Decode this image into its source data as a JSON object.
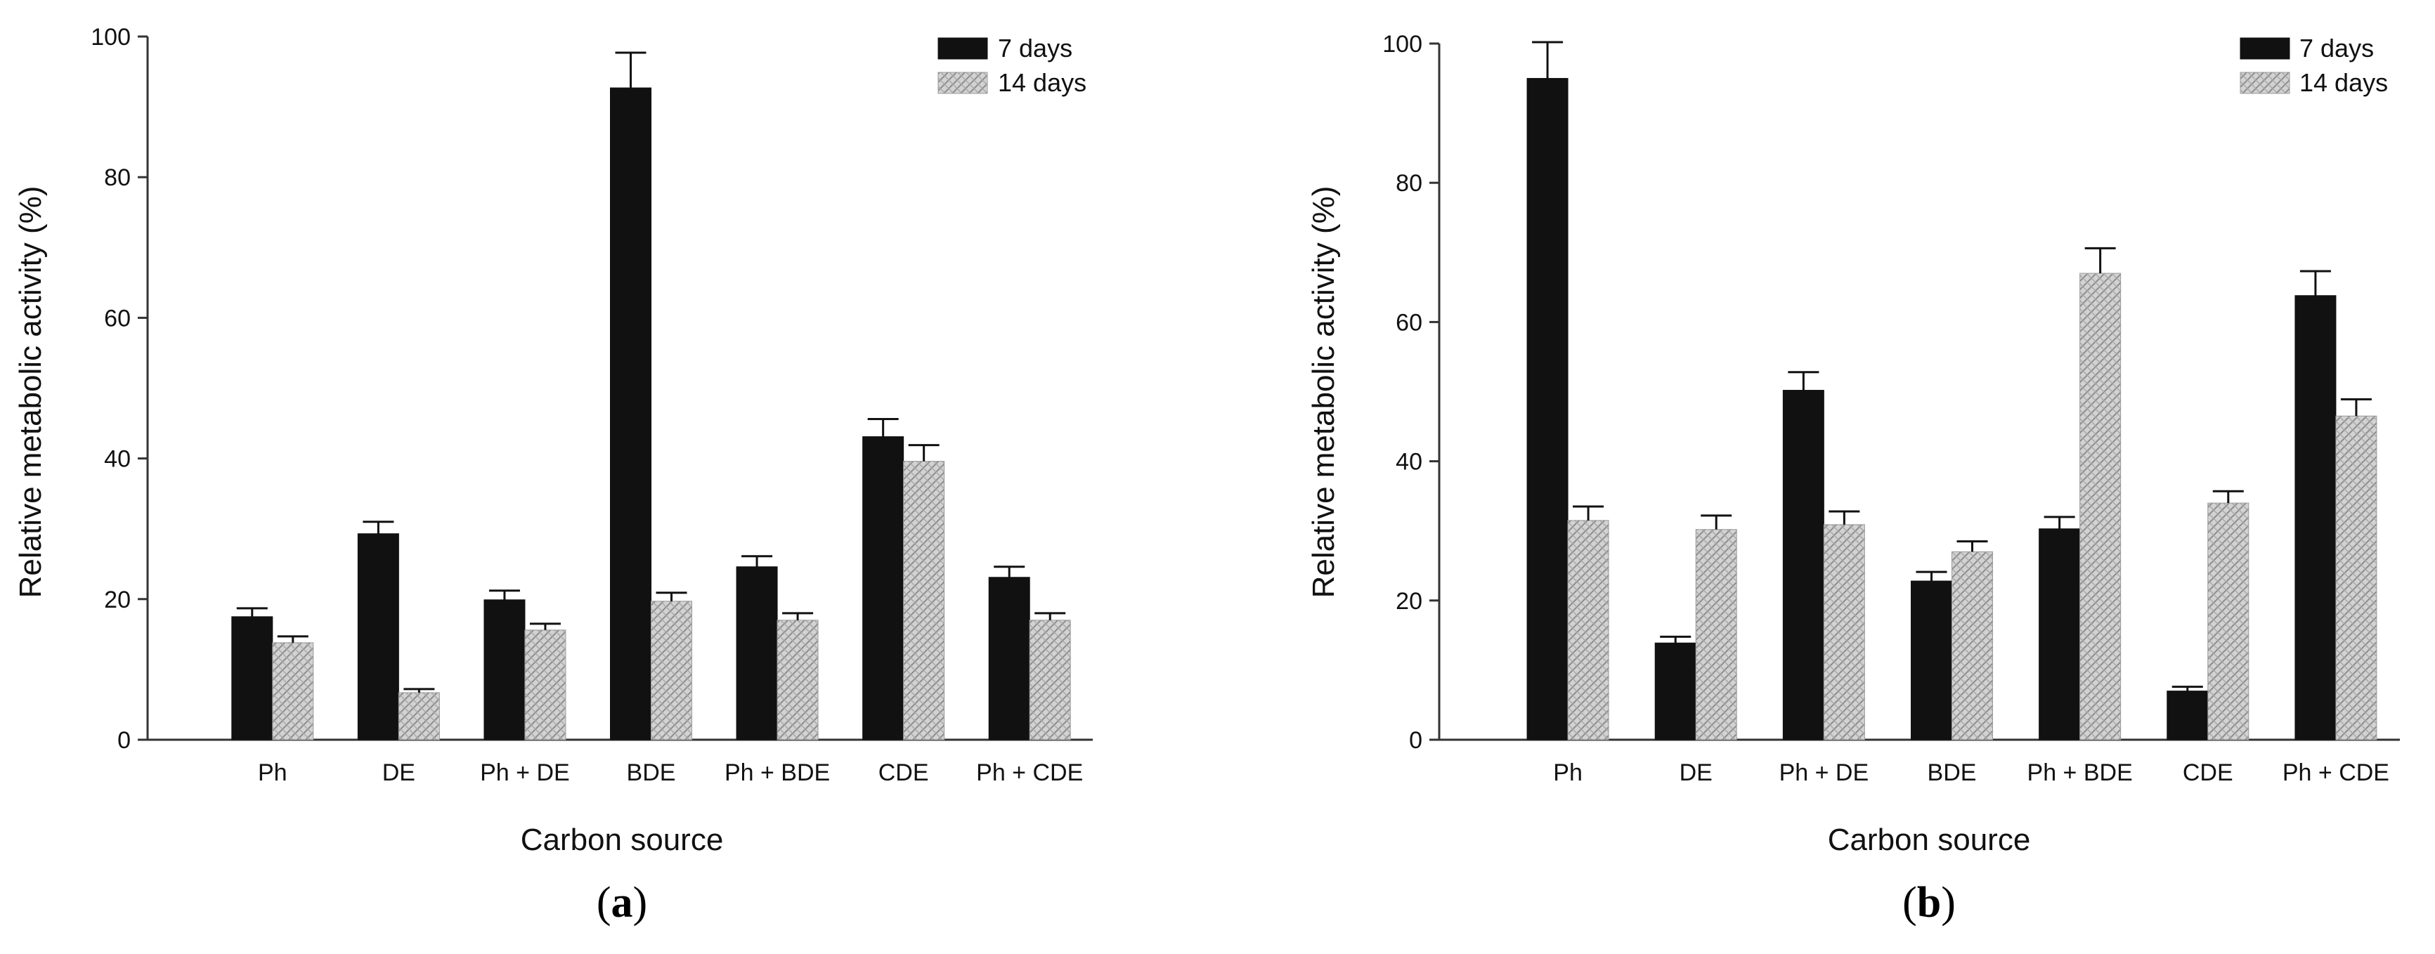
{
  "chart_data": [
    {
      "type": "bar",
      "panel_label": "(a)",
      "panel_label_parts": [
        "(",
        "a",
        ")"
      ],
      "xlabel": "Carbon source",
      "ylabel": "Relative metabolic activity (%)",
      "ylim": [
        0,
        100
      ],
      "yticks": [
        0,
        20,
        40,
        60,
        80,
        100
      ],
      "categories": [
        "Ph",
        "DE",
        "Ph + DE",
        "BDE",
        "Ph + BDE",
        "CDE",
        "Ph + CDE"
      ],
      "legend_position": "top-right",
      "series": [
        {
          "name": "7 days",
          "color": "#111111",
          "pattern": "solid",
          "values": [
            17.5,
            29.3,
            19.9,
            92.7,
            24.6,
            43.1,
            23.1
          ],
          "errors": [
            1.2,
            1.7,
            1.3,
            5.0,
            1.5,
            2.5,
            1.5
          ]
        },
        {
          "name": "14  days",
          "color": "#c8c8c8",
          "pattern": "crosshatch",
          "values": [
            13.8,
            6.7,
            15.6,
            19.7,
            17.0,
            39.6,
            17.0
          ],
          "errors": [
            0.9,
            0.5,
            0.9,
            1.2,
            1.0,
            2.3,
            1.0
          ]
        }
      ]
    },
    {
      "type": "bar",
      "panel_label": "(b)",
      "panel_label_parts": [
        "(",
        "b",
        ")"
      ],
      "xlabel": "Carbon source",
      "ylabel": "Relative metabolic activity (%)",
      "ylim": [
        0,
        100
      ],
      "yticks": [
        0,
        20,
        40,
        60,
        80,
        100
      ],
      "categories": [
        "Ph",
        "DE",
        "Ph + DE",
        "BDE",
        "Ph + BDE",
        "CDE",
        "Ph + CDE"
      ],
      "legend_position": "top-right",
      "series": [
        {
          "name": "7 days",
          "color": "#111111",
          "pattern": "solid",
          "values": [
            95.0,
            13.9,
            50.2,
            22.8,
            30.3,
            7.0,
            63.8
          ],
          "errors": [
            5.2,
            0.9,
            2.6,
            1.3,
            1.7,
            0.6,
            3.5
          ]
        },
        {
          "name": "14  days",
          "color": "#c8c8c8",
          "pattern": "crosshatch",
          "values": [
            31.5,
            30.2,
            30.9,
            27.0,
            67.0,
            34.0,
            46.5
          ],
          "errors": [
            2.0,
            2.0,
            1.9,
            1.5,
            3.6,
            1.7,
            2.4
          ]
        }
      ]
    }
  ]
}
